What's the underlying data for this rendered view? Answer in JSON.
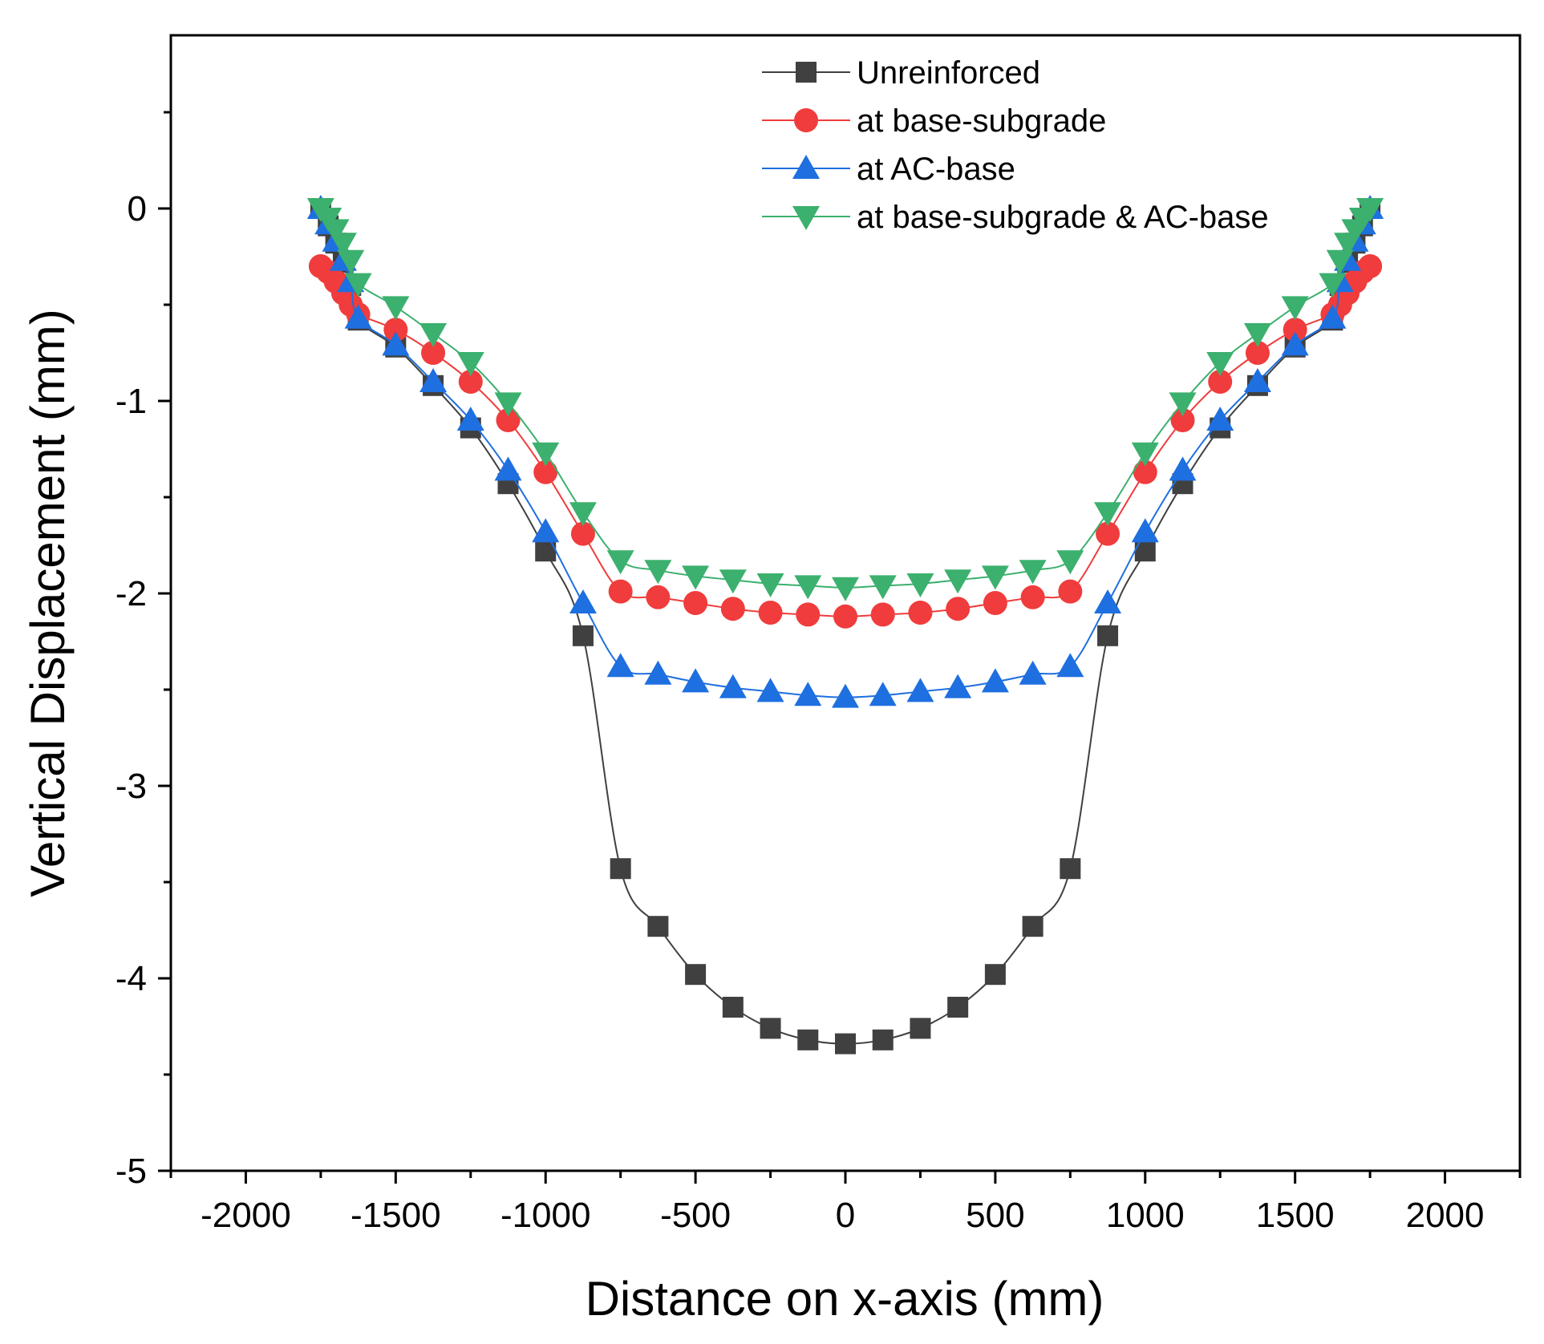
{
  "chart_data": {
    "type": "line",
    "xlabel": "Distance on x-axis (mm)",
    "ylabel": "Vertical Displacement (mm)",
    "xlim": [
      -2250,
      2250
    ],
    "ylim": [
      -5,
      0.9
    ],
    "x_ticks": [
      -2000,
      -1500,
      -1000,
      -500,
      0,
      500,
      1000,
      1500,
      2000
    ],
    "x_tick_labels": [
      "-2000",
      "-1500",
      "-1000",
      "-500",
      "0",
      "500",
      "1000",
      "1500",
      "2000"
    ],
    "y_ticks": [
      -5,
      -4,
      -3,
      -2,
      -1,
      0
    ],
    "y_tick_labels": [
      "-5",
      "-4",
      "-3",
      "-2",
      "-1",
      "0"
    ],
    "legend_position": "top-right",
    "x": [
      -1750,
      -1725,
      -1700,
      -1675,
      -1650,
      -1625,
      -1500,
      -1375,
      -1250,
      -1125,
      -1000,
      -875,
      -750,
      -625,
      -500,
      -375,
      -250,
      -125,
      0,
      125,
      250,
      375,
      500,
      625,
      750,
      875,
      1000,
      1125,
      1250,
      1375,
      1500,
      1625,
      1650,
      1675,
      1700,
      1725,
      1750
    ],
    "series": [
      {
        "name": "Unreinforced",
        "color": "#404040",
        "marker": "square",
        "values": [
          0,
          -0.09,
          -0.18,
          -0.28,
          -0.4,
          -0.58,
          -0.72,
          -0.92,
          -1.14,
          -1.43,
          -1.78,
          -2.22,
          -3.43,
          -3.73,
          -3.98,
          -4.15,
          -4.26,
          -4.32,
          -4.34,
          -4.32,
          -4.26,
          -4.15,
          -3.98,
          -3.73,
          -3.43,
          -2.22,
          -1.78,
          -1.43,
          -1.14,
          -0.92,
          -0.72,
          -0.58,
          -0.4,
          -0.28,
          -0.18,
          -0.09,
          0
        ]
      },
      {
        "name": "at base-subgrade",
        "color": "#f03c3c",
        "marker": "circle",
        "values": [
          -0.3,
          -0.33,
          -0.38,
          -0.44,
          -0.5,
          -0.55,
          -0.63,
          -0.75,
          -0.9,
          -1.1,
          -1.37,
          -1.69,
          -1.99,
          -2.02,
          -2.05,
          -2.08,
          -2.1,
          -2.11,
          -2.12,
          -2.11,
          -2.1,
          -2.08,
          -2.05,
          -2.02,
          -1.99,
          -1.69,
          -1.37,
          -1.1,
          -0.9,
          -0.75,
          -0.63,
          -0.55,
          -0.5,
          -0.44,
          -0.38,
          -0.33,
          -0.3
        ]
      },
      {
        "name": "at  AC-base",
        "color": "#1e6fe0",
        "marker": "triangle-up",
        "values": [
          0,
          -0.08,
          -0.17,
          -0.27,
          -0.38,
          -0.57,
          -0.71,
          -0.9,
          -1.1,
          -1.36,
          -1.68,
          -2.05,
          -2.38,
          -2.42,
          -2.46,
          -2.49,
          -2.51,
          -2.53,
          -2.54,
          -2.53,
          -2.51,
          -2.49,
          -2.46,
          -2.42,
          -2.38,
          -2.05,
          -1.68,
          -1.36,
          -1.1,
          -0.9,
          -0.71,
          -0.57,
          -0.38,
          -0.27,
          -0.17,
          -0.08,
          0
        ]
      },
      {
        "name": "at base-subgrade & AC-base",
        "color": "#3cb06e",
        "marker": "triangle-down",
        "values": [
          0,
          -0.05,
          -0.11,
          -0.18,
          -0.27,
          -0.39,
          -0.51,
          -0.65,
          -0.8,
          -1.01,
          -1.27,
          -1.58,
          -1.83,
          -1.88,
          -1.91,
          -1.93,
          -1.95,
          -1.96,
          -1.97,
          -1.96,
          -1.95,
          -1.93,
          -1.91,
          -1.88,
          -1.83,
          -1.58,
          -1.27,
          -1.01,
          -0.8,
          -0.65,
          -0.51,
          -0.39,
          -0.27,
          -0.18,
          -0.11,
          -0.05,
          0
        ]
      }
    ]
  }
}
